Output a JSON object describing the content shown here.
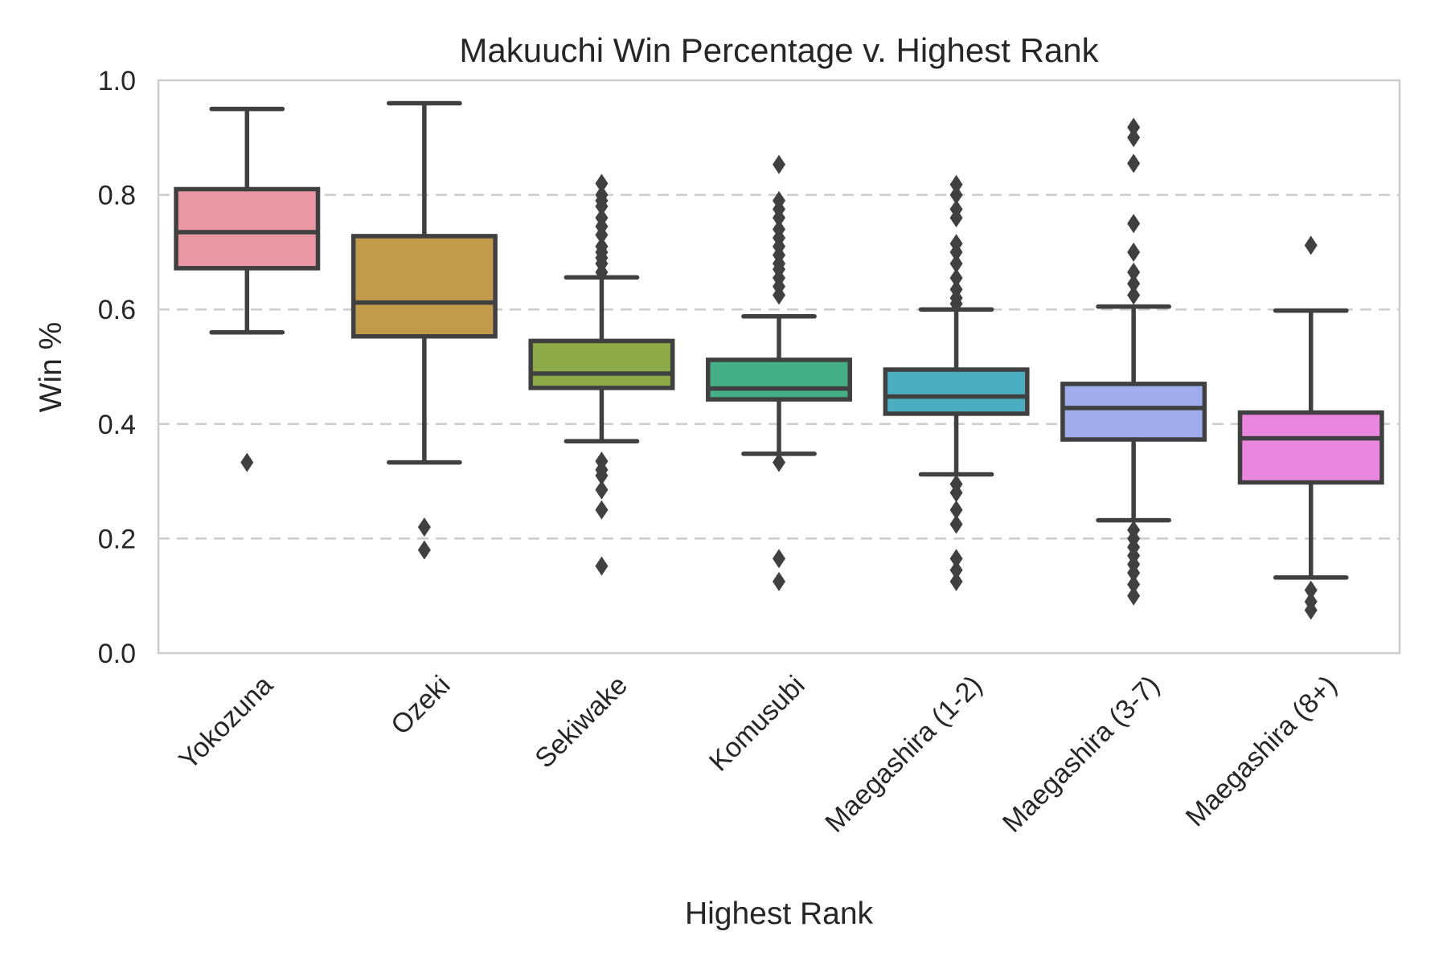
{
  "chart_data": {
    "type": "box",
    "title": "Makuuchi Win Percentage v. Highest Rank",
    "xlabel": "Highest Rank",
    "ylabel": "Win %",
    "ylim": [
      0,
      1.0
    ],
    "y_ticks": [
      "0.0",
      "0.2",
      "0.4",
      "0.6",
      "0.8",
      "1.0"
    ],
    "y_tick_values": [
      0,
      0.2,
      0.4,
      0.6,
      0.8,
      1.0
    ],
    "grid": "horizontal-dashed",
    "categories": [
      "Yokozuna",
      "Ozeki",
      "Sekiwake",
      "Komusubi",
      "Maegashira (1-2)",
      "Maegashira (3-7)",
      "Maegashira (8+)"
    ],
    "colors": [
      "#ea96a3",
      "#c19a4b",
      "#8daa48",
      "#44ae84",
      "#4aaec0",
      "#a0acec",
      "#e987df"
    ],
    "line_color": "#404040",
    "boxes": [
      {
        "whislo": 0.56,
        "q1": 0.672,
        "med": 0.735,
        "q3": 0.81,
        "whishi": 0.95,
        "fliers": [
          0.333
        ]
      },
      {
        "whislo": 0.333,
        "q1": 0.553,
        "med": 0.612,
        "q3": 0.728,
        "whishi": 0.96,
        "fliers": [
          0.22,
          0.18
        ]
      },
      {
        "whislo": 0.37,
        "q1": 0.463,
        "med": 0.488,
        "q3": 0.545,
        "whishi": 0.656,
        "fliers": [
          0.82,
          0.8,
          0.79,
          0.78,
          0.76,
          0.745,
          0.73,
          0.71,
          0.7,
          0.69,
          0.68,
          0.665,
          0.335,
          0.32,
          0.31,
          0.285,
          0.25,
          0.152
        ]
      },
      {
        "whislo": 0.348,
        "q1": 0.443,
        "med": 0.462,
        "q3": 0.512,
        "whishi": 0.588,
        "fliers": [
          0.853,
          0.79,
          0.775,
          0.76,
          0.74,
          0.725,
          0.71,
          0.695,
          0.68,
          0.67,
          0.655,
          0.64,
          0.625,
          0.333,
          0.165,
          0.125
        ]
      },
      {
        "whislo": 0.312,
        "q1": 0.418,
        "med": 0.448,
        "q3": 0.495,
        "whishi": 0.6,
        "fliers": [
          0.818,
          0.8,
          0.775,
          0.76,
          0.715,
          0.7,
          0.68,
          0.655,
          0.635,
          0.62,
          0.61,
          0.295,
          0.28,
          0.25,
          0.225,
          0.165,
          0.145,
          0.125
        ]
      },
      {
        "whislo": 0.232,
        "q1": 0.373,
        "med": 0.428,
        "q3": 0.47,
        "whishi": 0.605,
        "fliers": [
          0.918,
          0.9,
          0.855,
          0.75,
          0.7,
          0.665,
          0.645,
          0.625,
          0.215,
          0.2,
          0.185,
          0.17,
          0.155,
          0.14,
          0.12,
          0.1
        ]
      },
      {
        "whislo": 0.132,
        "q1": 0.298,
        "med": 0.375,
        "q3": 0.42,
        "whishi": 0.598,
        "fliers": [
          0.712,
          0.11,
          0.09,
          0.075
        ]
      }
    ]
  }
}
